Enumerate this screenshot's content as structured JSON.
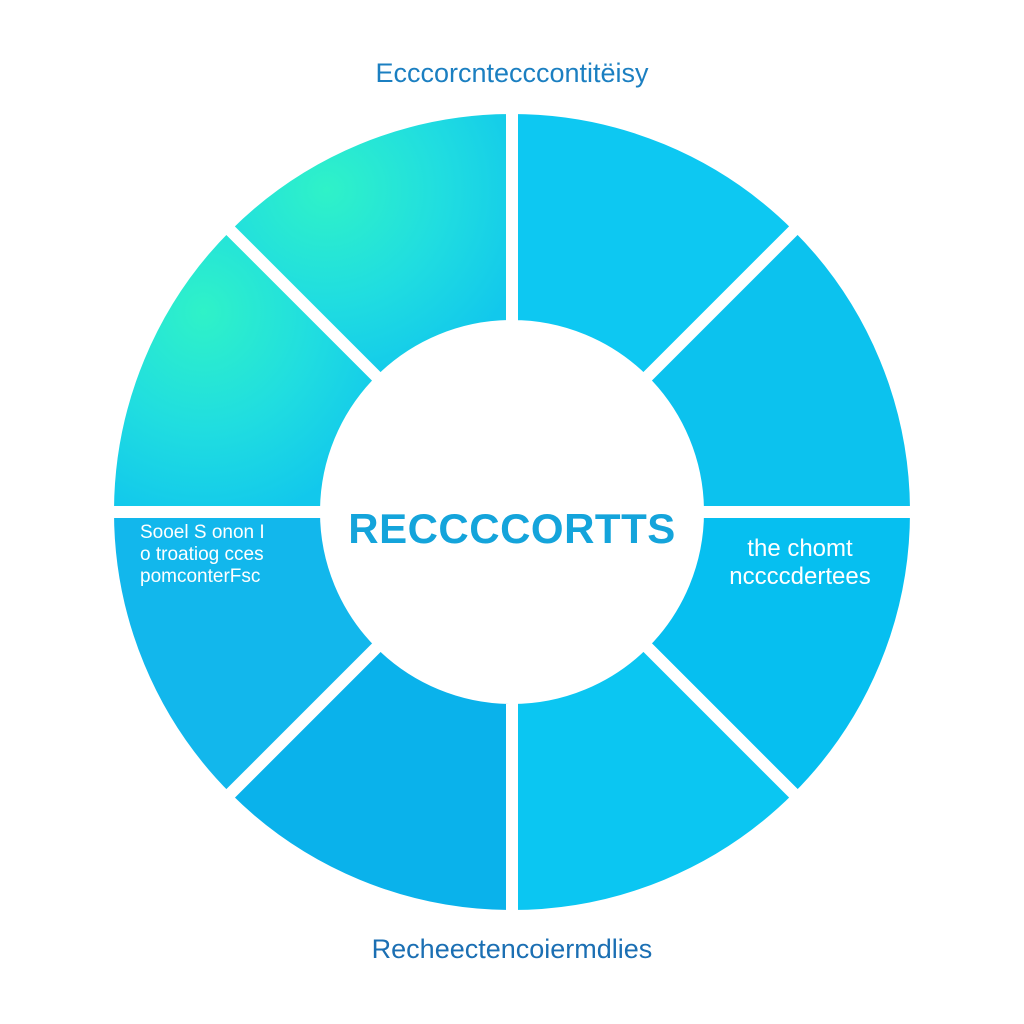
{
  "chart_data": {
    "type": "pie",
    "title": "Ecccorcntecccontitëisy",
    "center_label": "RECCCCORTTS",
    "footer": "Recheectencoiermdlies",
    "segments": [
      {
        "start_deg": 0,
        "end_deg": 45,
        "value": 1,
        "color": "#0dc8f2",
        "gradient": false,
        "label": ""
      },
      {
        "start_deg": 45,
        "end_deg": 90,
        "value": 1,
        "color": "#0cc2ee",
        "gradient": false,
        "label": ""
      },
      {
        "start_deg": 90,
        "end_deg": 135,
        "value": 1,
        "color": "#06bff0",
        "gradient": false,
        "label": "the chomt\nnccccdertees"
      },
      {
        "start_deg": 135,
        "end_deg": 180,
        "value": 1,
        "color": "#0bc6f2",
        "gradient": false,
        "label": ""
      },
      {
        "start_deg": 180,
        "end_deg": 225,
        "value": 1,
        "color": "#0ab2eb",
        "gradient": false,
        "label": ""
      },
      {
        "start_deg": 225,
        "end_deg": 270,
        "value": 1,
        "color": "#12b7ec",
        "gradient": false,
        "label": "Sooel S onon I\no troatiog cces\npomconterFsc"
      },
      {
        "start_deg": 270,
        "end_deg": 315,
        "value": 1,
        "color": "#10c4ee",
        "gradient": true,
        "label": ""
      },
      {
        "start_deg": 315,
        "end_deg": 360,
        "value": 1,
        "color": "#13cdec",
        "gradient": true,
        "label": ""
      }
    ],
    "colors": {
      "title": "#1b7fc1",
      "center_label": "#14a4db",
      "gap": "#ffffff",
      "gradient_light": "#2ff2c8",
      "gradient_dark": "#12c8ec"
    }
  }
}
